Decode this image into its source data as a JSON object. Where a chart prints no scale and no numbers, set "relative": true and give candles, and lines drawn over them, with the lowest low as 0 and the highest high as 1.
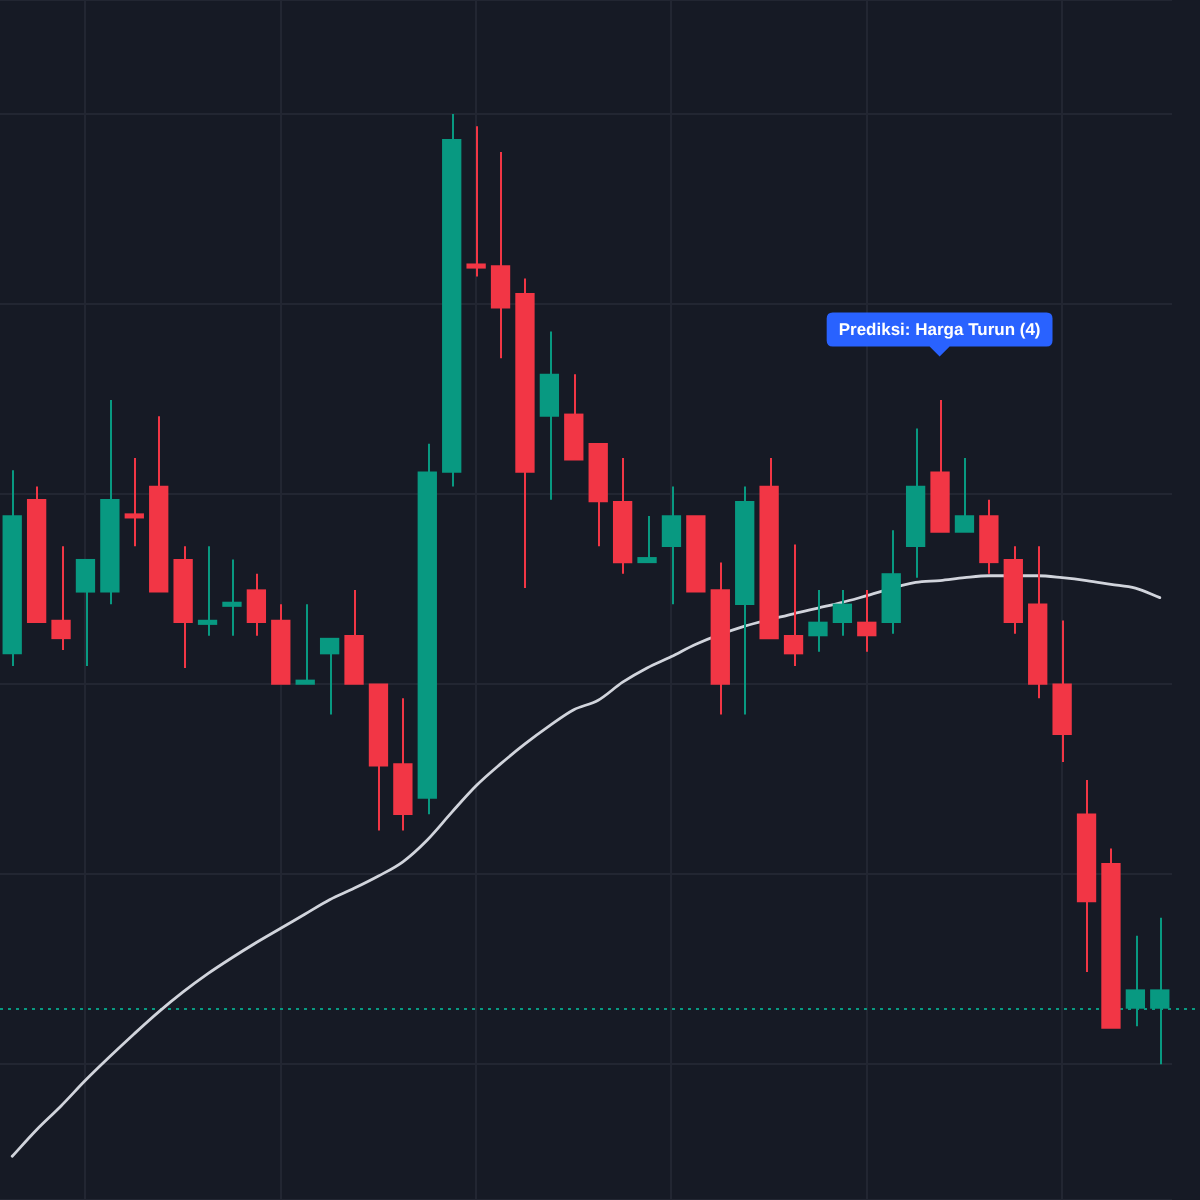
{
  "chart_data": {
    "type": "candlestick",
    "relative": true,
    "categories": [
      null,
      null,
      null,
      null,
      null,
      null,
      null,
      null,
      null,
      null,
      null,
      null,
      null,
      null,
      null,
      null,
      null,
      null,
      null,
      null,
      null,
      null,
      null,
      null,
      null,
      null,
      null,
      null,
      null,
      null,
      null,
      null,
      null,
      null,
      null,
      null,
      null,
      null,
      null,
      null,
      null,
      null,
      null,
      null,
      null,
      null,
      null,
      null
    ],
    "ohlc": [
      [
        0.432,
        0.625,
        0.419,
        0.577
      ],
      [
        0.594,
        0.608,
        0.465,
        0.465
      ],
      [
        0.467,
        0.545,
        0.436,
        0.448
      ],
      [
        0.497,
        0.531,
        0.419,
        0.531
      ],
      [
        0.497,
        0.699,
        0.484,
        0.594
      ],
      [
        0.579,
        0.638,
        0.545,
        0.575
      ],
      [
        0.608,
        0.682,
        0.497,
        0.497
      ],
      [
        0.531,
        0.545,
        0.417,
        0.465
      ],
      [
        0.463,
        0.545,
        0.451,
        0.467
      ],
      [
        0.482,
        0.531,
        0.451,
        0.486
      ],
      [
        0.499,
        0.516,
        0.451,
        0.465
      ],
      [
        0.467,
        0.484,
        0.4,
        0.4
      ],
      [
        0.4,
        0.484,
        0.4,
        0.404
      ],
      [
        0.432,
        0.448,
        0.368,
        0.448
      ],
      [
        0.451,
        0.499,
        0.4,
        0.4
      ],
      [
        0.4,
        0.4,
        0.246,
        0.314
      ],
      [
        0.316,
        0.385,
        0.246,
        0.263
      ],
      [
        0.28,
        0.653,
        0.263,
        0.623
      ],
      [
        0.623,
        1.0,
        0.608,
        0.973
      ],
      [
        0.842,
        0.987,
        0.829,
        0.838
      ],
      [
        0.84,
        0.96,
        0.743,
        0.796
      ],
      [
        0.811,
        0.827,
        0.501,
        0.623
      ],
      [
        0.682,
        0.771,
        0.594,
        0.726
      ],
      [
        0.684,
        0.726,
        0.636,
        0.636
      ],
      [
        0.653,
        0.653,
        0.545,
        0.592
      ],
      [
        0.592,
        0.638,
        0.516,
        0.528
      ],
      [
        0.528,
        0.577,
        0.528,
        0.533
      ],
      [
        0.545,
        0.608,
        0.484,
        0.577
      ],
      [
        0.577,
        0.577,
        0.497,
        0.497
      ],
      [
        0.499,
        0.528,
        0.368,
        0.4
      ],
      [
        0.484,
        0.608,
        0.368,
        0.592
      ],
      [
        0.608,
        0.638,
        0.448,
        0.448
      ],
      [
        0.451,
        0.547,
        0.419,
        0.432
      ],
      [
        0.451,
        0.499,
        0.434,
        0.465
      ],
      [
        0.465,
        0.499,
        0.451,
        0.484
      ],
      [
        0.465,
        0.499,
        0.434,
        0.451
      ],
      [
        0.465,
        0.562,
        0.453,
        0.516
      ],
      [
        0.545,
        0.669,
        0.512,
        0.608
      ],
      [
        0.623,
        0.699,
        0.56,
        0.56
      ],
      [
        0.56,
        0.638,
        0.56,
        0.577
      ],
      [
        0.577,
        0.594,
        0.516,
        0.528
      ],
      [
        0.531,
        0.545,
        0.453,
        0.465
      ],
      [
        0.484,
        0.545,
        0.385,
        0.4
      ],
      [
        0.4,
        0.467,
        0.318,
        0.347
      ],
      [
        0.263,
        0.299,
        0.097,
        0.171
      ],
      [
        0.211,
        0.227,
        0.038,
        0.038
      ],
      [
        0.059,
        0.135,
        0.04,
        0.078
      ],
      [
        0.059,
        0.154,
        0.0,
        0.078
      ]
    ],
    "colors": [
      "#089981",
      "#f23645",
      "#f23645",
      "#089981",
      "#089981",
      "#f23645",
      "#f23645",
      "#f23645",
      "#089981",
      "#089981",
      "#f23645",
      "#f23645",
      "#089981",
      "#089981",
      "#f23645",
      "#f23645",
      "#f23645",
      "#089981",
      "#089981",
      "#f23645",
      "#f23645",
      "#f23645",
      "#089981",
      "#f23645",
      "#f23645",
      "#f23645",
      "#089981",
      "#089981",
      "#f23645",
      "#f23645",
      "#089981",
      "#f23645",
      "#f23645",
      "#089981",
      "#089981",
      "#f23645",
      "#089981",
      "#089981",
      "#f23645",
      "#089981",
      "#f23645",
      "#f23645",
      "#f23645",
      "#f23645",
      "#f23645",
      "#f23645",
      "#089981",
      "#089981"
    ],
    "series": [
      {
        "type": "line",
        "color": "#d1d4dc",
        "values": [
          -0.097,
          -0.069,
          -0.044,
          -0.017,
          0.008,
          0.032,
          0.055,
          0.076,
          0.095,
          0.112,
          0.128,
          0.143,
          0.158,
          0.173,
          0.185,
          0.198,
          0.213,
          0.236,
          0.265,
          0.293,
          0.316,
          0.337,
          0.356,
          0.373,
          0.383,
          0.402,
          0.417,
          0.429,
          0.442,
          null,
          0.461,
          null,
          0.474,
          0.48,
          0.486,
          0.493,
          null,
          0.507,
          0.509,
          0.512,
          0.514,
          null,
          0.514,
          0.512,
          0.509,
          0.505,
          0.501,
          0.491
        ]
      }
    ],
    "ref_lines": [
      {
        "axis": "y",
        "value": 0.059,
        "color": "#089981",
        "line_style": "dotted"
      }
    ],
    "annotations": [
      "Prediksi: Harga Turun (4)"
    ],
    "grid": true
  }
}
